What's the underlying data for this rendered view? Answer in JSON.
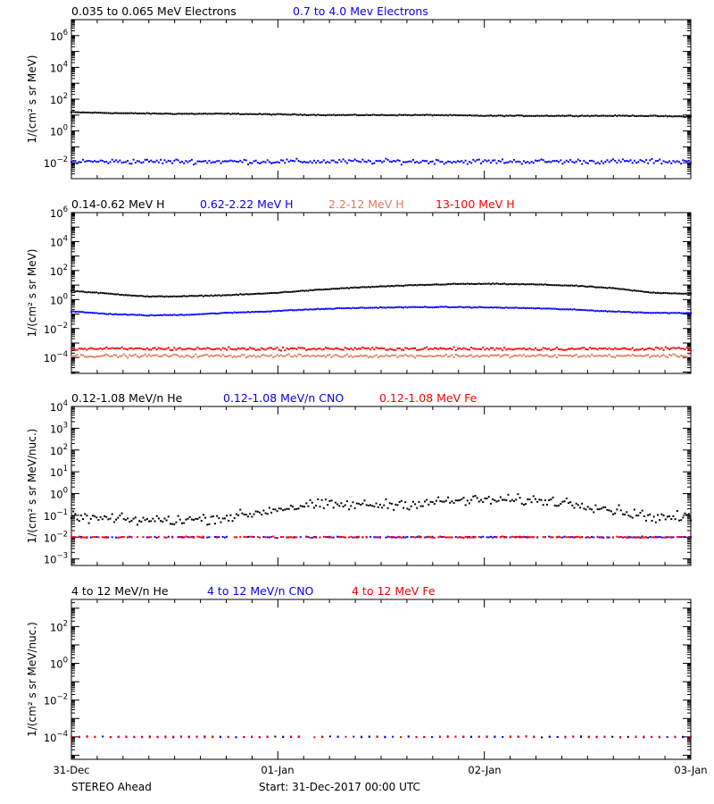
{
  "footer": {
    "spacecraft": "STEREO Ahead",
    "start": "Start: 31-Dec-2017 00:00 UTC"
  },
  "x_axis": {
    "tick_labels": [
      "31-Dec",
      "01-Jan",
      "02-Jan",
      "03-Jan"
    ]
  },
  "chart_data": [
    {
      "type": "scatter",
      "ylabel": "1/(cm² s sr MeV)",
      "yscale": "log",
      "ylim": [
        0.001,
        10000000
      ],
      "yticks": [
        {
          "e": -2
        },
        {
          "e": 0
        },
        {
          "e": 2
        },
        {
          "e": 4
        },
        {
          "e": 6
        }
      ],
      "x": [
        0,
        72
      ],
      "series": [
        {
          "name": "0.035 to 0.065 MeV Electrons",
          "color": "#000000",
          "level": [
            15,
            13,
            12,
            12,
            11,
            10,
            10,
            10,
            9,
            9,
            9,
            9,
            8
          ]
        },
        {
          "name": "0.7 to 4.0 Mev Electrons",
          "color": "#0000ff",
          "level": [
            0.012,
            0.012,
            0.012,
            0.012,
            0.012,
            0.012,
            0.012,
            0.012,
            0.012,
            0.012,
            0.012,
            0.012,
            0.012
          ]
        }
      ]
    },
    {
      "type": "scatter",
      "ylabel": "1/(cm² s sr MeV)",
      "yscale": "log",
      "ylim": [
        8e-06,
        1000000
      ],
      "yticks": [
        {
          "e": -4
        },
        {
          "e": -2
        },
        {
          "e": 0
        },
        {
          "e": 2
        },
        {
          "e": 4
        },
        {
          "e": 6
        }
      ],
      "x": [
        0,
        72
      ],
      "series": [
        {
          "name": "0.14-0.62 MeV H",
          "color": "#000000",
          "level": [
            4,
            2.5,
            1.6,
            1.7,
            2,
            2.6,
            4,
            6,
            8,
            10,
            12,
            12,
            11,
            9,
            6,
            3,
            2.5
          ]
        },
        {
          "name": "0.62-2.22 MeV H",
          "color": "#0000ff",
          "level": [
            0.15,
            0.1,
            0.08,
            0.09,
            0.12,
            0.15,
            0.2,
            0.25,
            0.28,
            0.3,
            0.3,
            0.28,
            0.25,
            0.2,
            0.15,
            0.12,
            0.12
          ]
        },
        {
          "name": "2.2-12 MeV H",
          "color": "#e07a5f",
          "level": [
            0.00013,
            0.00013,
            0.00013,
            0.00013,
            0.00013,
            0.00013,
            0.00013,
            0.00013,
            0.00013,
            0.00013,
            0.00013,
            0.00013,
            0.00013,
            0.00013,
            0.00013,
            0.00013,
            0.00013
          ]
        },
        {
          "name": "13-100 MeV H",
          "color": "#ff0000",
          "level": [
            0.0004,
            0.0004,
            0.0004,
            0.0004,
            0.0004,
            0.0004,
            0.0004,
            0.0004,
            0.0004,
            0.0004,
            0.0004,
            0.0004,
            0.0004,
            0.0004,
            0.0004,
            0.0004,
            0.0004
          ]
        }
      ]
    },
    {
      "type": "scatter",
      "ylabel": "1/(cm² s sr MeV/nuc.)",
      "yscale": "log",
      "ylim": [
        0.0005,
        10000
      ],
      "yticks": [
        {
          "e": -3
        },
        {
          "e": -2
        },
        {
          "e": -1
        },
        {
          "e": 0
        },
        {
          "e": 1
        },
        {
          "e": 2
        },
        {
          "e": 3
        },
        {
          "e": 4
        }
      ],
      "x": [
        0,
        72
      ],
      "series": [
        {
          "name": "0.12-1.08 MeV/n He",
          "color": "#000000",
          "level": [
            0.08,
            0.07,
            0.06,
            0.06,
            0.07,
            0.1,
            0.2,
            0.3,
            0.3,
            0.3,
            0.35,
            0.45,
            0.5,
            0.5,
            0.45,
            0.3,
            0.15,
            0.08,
            0.08
          ]
        },
        {
          "name": "0.12-1.08 MeV/n CNO",
          "color": "#0000ff",
          "level": [
            0.01,
            0.01,
            0.01,
            0.01,
            0.01,
            0.01,
            0.01,
            0.01,
            0.01,
            0.01,
            0.01,
            0.01,
            0.01,
            0.01,
            0.01,
            0.01,
            0.01,
            0.01,
            0.01
          ]
        },
        {
          "name": "0.12-1.08 MeV Fe",
          "color": "#ff0000",
          "level": [
            0.01,
            0.01,
            0.01,
            0.01,
            0.01,
            0.01,
            0.01,
            0.01,
            0.01,
            0.01,
            0.01,
            0.01,
            0.01,
            0.01,
            0.01,
            0.01,
            0.01,
            0.01,
            0.01
          ]
        }
      ]
    },
    {
      "type": "scatter",
      "ylabel": "1/(cm² s sr MeV/nuc.)",
      "yscale": "log",
      "ylim": [
        6e-06,
        3000
      ],
      "yticks": [
        {
          "e": -4
        },
        {
          "e": -2
        },
        {
          "e": 0
        },
        {
          "e": 2
        }
      ],
      "x": [
        0,
        72
      ],
      "series": [
        {
          "name": "4 to 12 MeV/n He",
          "color": "#000000",
          "level": [
            0.0001,
            0.0001,
            0.0001,
            0.0001,
            0.0001,
            0.0001,
            0.0001,
            0.0001,
            0.0001,
            0.0001,
            0.0001,
            0.0001,
            0.0001
          ]
        },
        {
          "name": "4 to 12 MeV/n CNO",
          "color": "#0000ff",
          "level": [
            0.0001,
            0.0001,
            0.0001,
            0.0001,
            0.0001,
            0.0001,
            0.0001,
            0.0001,
            0.0001,
            0.0001,
            0.0001,
            0.0001,
            0.0001
          ]
        },
        {
          "name": "4 to 12 MeV Fe",
          "color": "#ff0000",
          "level": [
            0.0001,
            0.0001,
            0.0001,
            0.0001,
            0.0001,
            0.0001,
            0.0001,
            0.0001,
            0.0001,
            0.0001,
            0.0001,
            0.0001,
            0.0001
          ]
        }
      ]
    }
  ]
}
